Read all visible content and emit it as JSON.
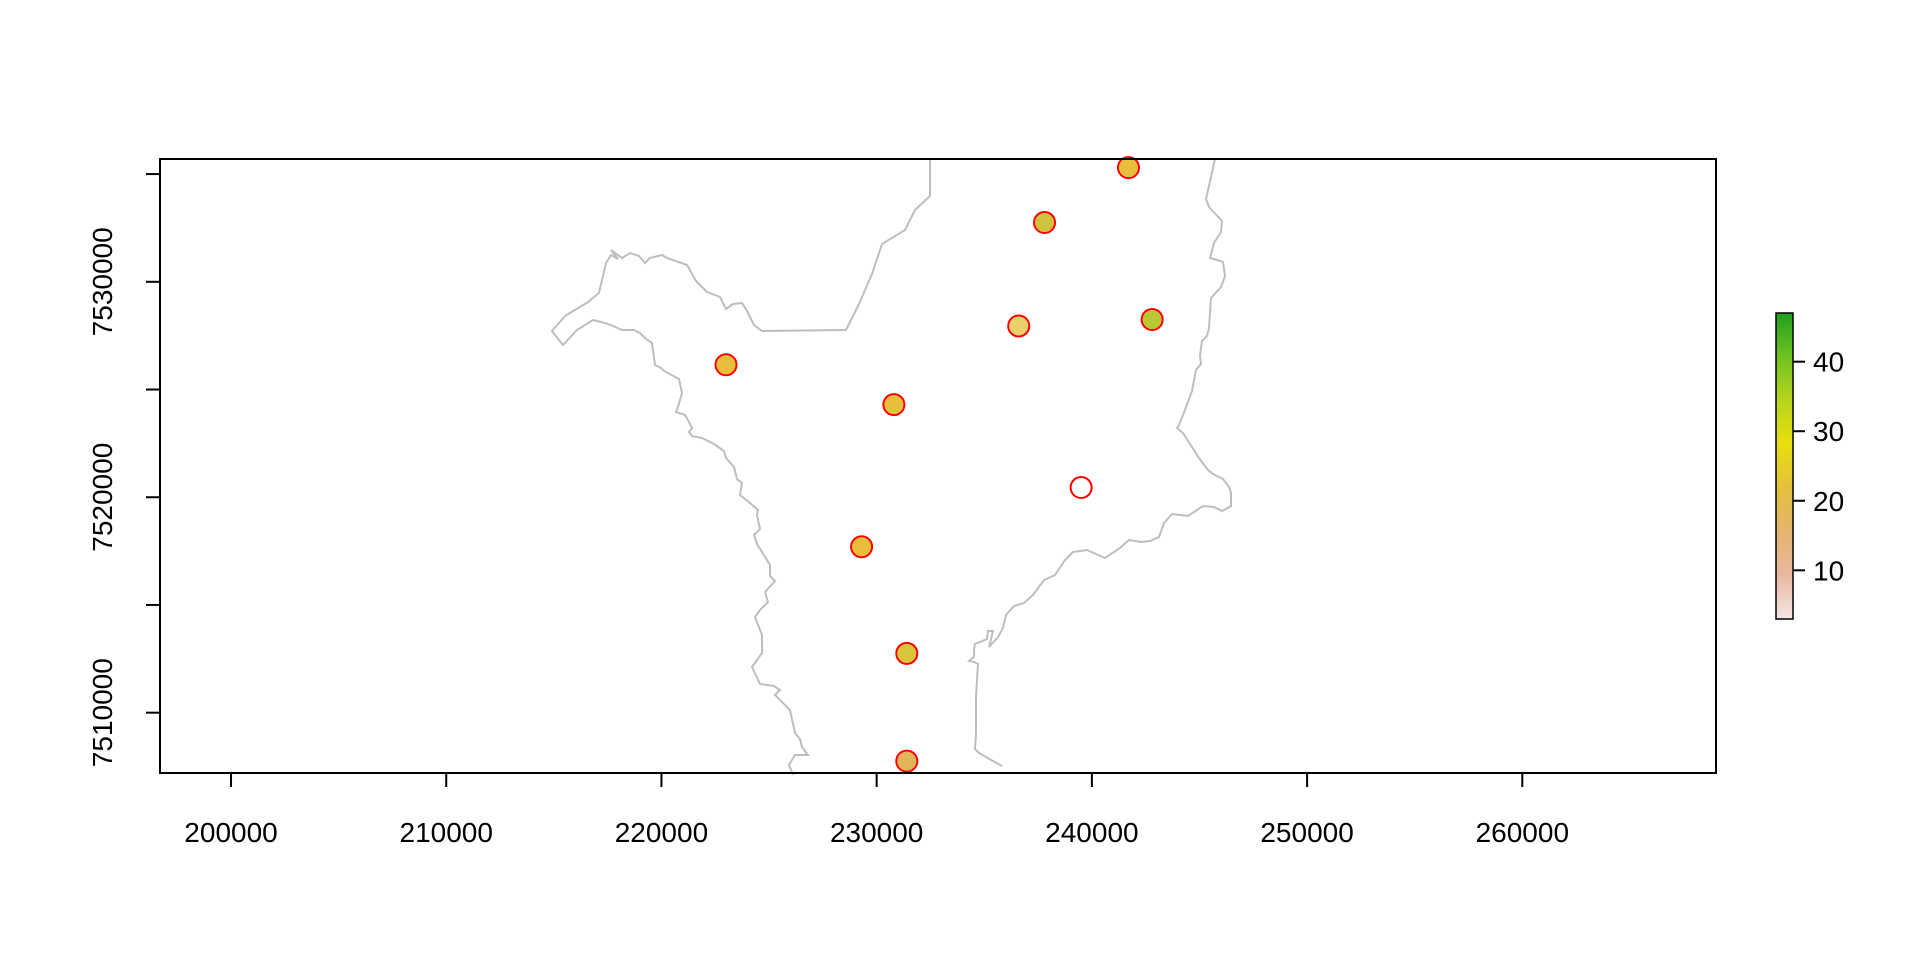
{
  "chart_data": {
    "type": "map",
    "xlim": [
      196700,
      269000
    ],
    "ylim": [
      7507200,
      7535700
    ],
    "x_ticks": [
      200000,
      210000,
      220000,
      230000,
      240000,
      250000,
      260000
    ],
    "y_ticks": [
      7510000,
      7520000,
      7530000
    ],
    "x_tick_labels": [
      "200000",
      "210000",
      "220000",
      "230000",
      "240000",
      "250000",
      "260000"
    ],
    "y_tick_labels": [
      "7510000",
      "7520000",
      "7530000"
    ],
    "y_minor_ticks": [
      7515000,
      7525000,
      7535000
    ],
    "boundary_color": "#bebebe",
    "marker_color": "#ff0000",
    "points": [
      {
        "x": 223000,
        "y": 7526150,
        "fill": "#e8bf3a"
      },
      {
        "x": 230800,
        "y": 7524300,
        "fill": "#e8bf3a"
      },
      {
        "x": 229300,
        "y": 7517700,
        "fill": "#e8bf3a"
      },
      {
        "x": 231400,
        "y": 7512750,
        "fill": "#d7c53a"
      },
      {
        "x": 231400,
        "y": 7507750,
        "fill": "#e3b55a"
      },
      {
        "x": 236600,
        "y": 7527950,
        "fill": "#ead069"
      },
      {
        "x": 237800,
        "y": 7532750,
        "fill": "#cfc23c"
      },
      {
        "x": 241700,
        "y": 7535300,
        "fill": "#e8bf3a"
      },
      {
        "x": 242800,
        "y": 7528250,
        "fill": "#b8c832"
      },
      {
        "x": 239500,
        "y": 7520450,
        "fill": "#ffffff"
      }
    ],
    "legend": {
      "type": "colorbar",
      "placement": "right",
      "ticks": [
        10,
        20,
        30,
        40
      ],
      "tick_labels": [
        "10",
        "20",
        "30",
        "40"
      ],
      "range": [
        3,
        47
      ],
      "colors": [
        "#f5e6e6",
        "#e8b8a0",
        "#e3b56e",
        "#e2c13b",
        "#e8de10",
        "#b7d51c",
        "#6fc222",
        "#1f9f1f"
      ]
    }
  }
}
